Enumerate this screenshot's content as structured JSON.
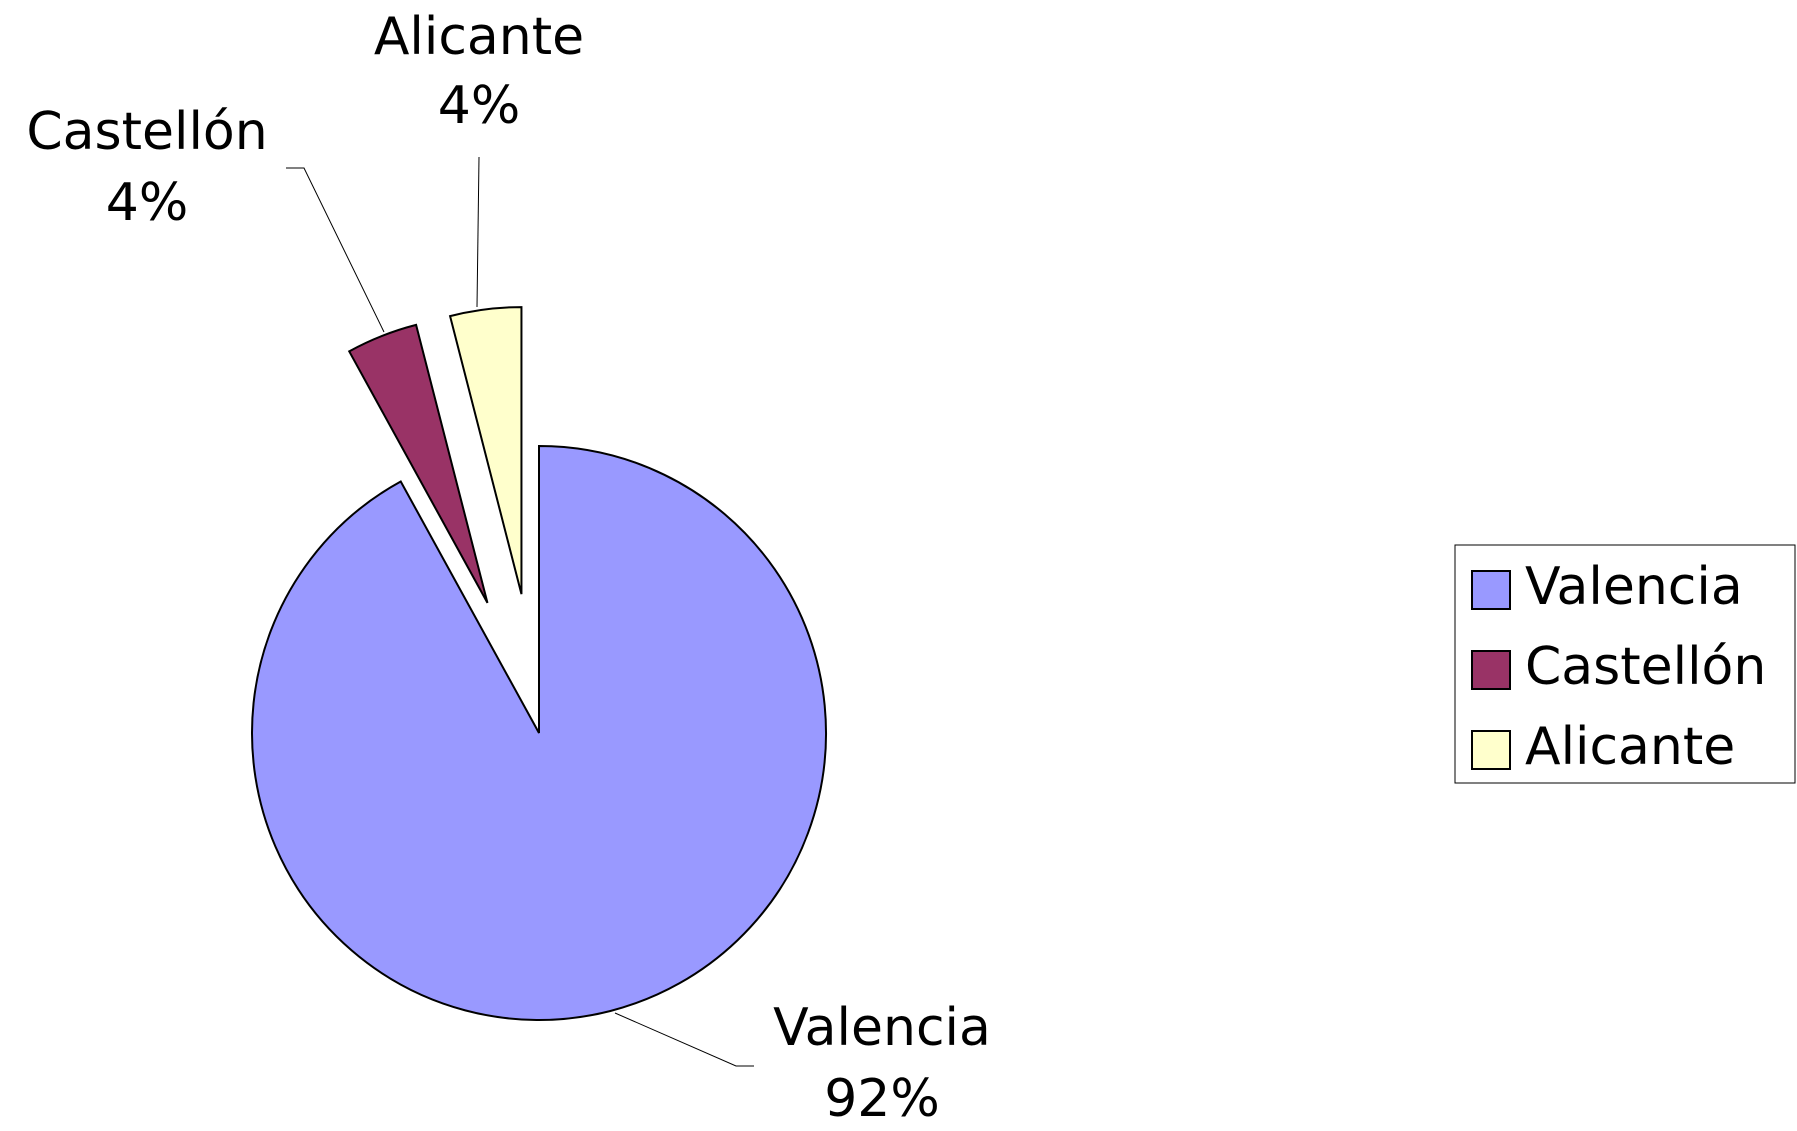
{
  "chart_data": {
    "type": "pie",
    "categories": [
      "Valencia",
      "Castellón",
      "Alicante"
    ],
    "values": [
      92,
      4,
      4
    ],
    "value_labels": [
      "92%",
      "4%",
      "4%"
    ],
    "colors": [
      "#9999ff",
      "#993366",
      "#ffffcc"
    ],
    "explode": [
      false,
      true,
      true
    ],
    "legend": "right"
  }
}
